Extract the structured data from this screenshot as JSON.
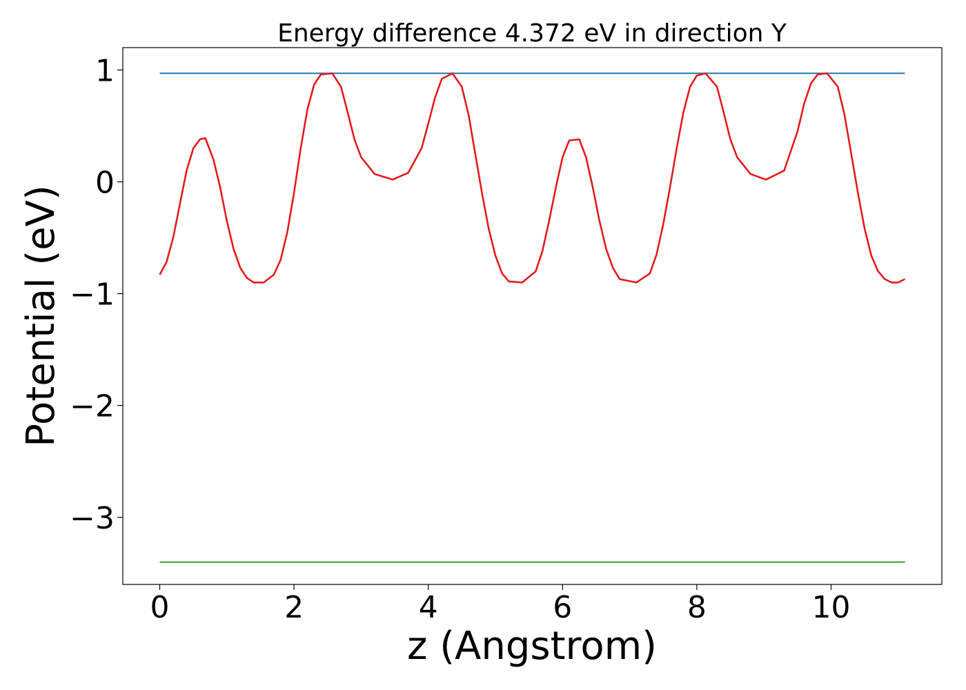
{
  "chart_data": {
    "type": "line",
    "title": "Energy difference 4.372 eV in direction Y",
    "xlabel": "z (Angstrom)",
    "ylabel": "Potential (eV)",
    "xlim": [
      -0.55,
      11.65
    ],
    "ylim": [
      -3.6,
      1.2
    ],
    "xticks": [
      0,
      2,
      4,
      6,
      8,
      10
    ],
    "xtick_labels": [
      "0",
      "2",
      "4",
      "6",
      "8",
      "10"
    ],
    "yticks": [
      1,
      0,
      -1,
      -2,
      -3
    ],
    "ytick_labels": [
      "1",
      "0",
      "−1",
      "−2",
      "−3"
    ],
    "grid": false,
    "legend": "none",
    "series": [
      {
        "color": "#1f77b4",
        "x": [
          0,
          11.1
        ],
        "y": [
          0.97,
          0.97
        ]
      },
      {
        "color": "#2ca02c",
        "x": [
          0,
          11.1
        ],
        "y": [
          -3.4,
          -3.4
        ]
      },
      {
        "color": "#e41a1c",
        "x": [
          0.0,
          0.1,
          0.2,
          0.3,
          0.4,
          0.5,
          0.6,
          0.68,
          0.8,
          0.9,
          1.0,
          1.1,
          1.2,
          1.3,
          1.4,
          1.55,
          1.7,
          1.8,
          1.9,
          2.0,
          2.1,
          2.2,
          2.3,
          2.4,
          2.57,
          2.7,
          2.8,
          2.9,
          3.0,
          3.2,
          3.47,
          3.7,
          3.9,
          4.0,
          4.1,
          4.2,
          4.36,
          4.5,
          4.6,
          4.7,
          4.8,
          4.9,
          5.0,
          5.1,
          5.2,
          5.4,
          5.6,
          5.7,
          5.8,
          5.9,
          6.0,
          6.1,
          6.25,
          6.35,
          6.45,
          6.55,
          6.65,
          6.75,
          6.85,
          7.1,
          7.3,
          7.4,
          7.5,
          7.6,
          7.7,
          7.8,
          7.9,
          8.0,
          8.13,
          8.3,
          8.4,
          8.5,
          8.6,
          8.8,
          9.03,
          9.3,
          9.5,
          9.6,
          9.7,
          9.8,
          9.94,
          10.1,
          10.2,
          10.3,
          10.4,
          10.5,
          10.6,
          10.7,
          10.8,
          10.9,
          11.0,
          11.1
        ],
        "y": [
          -0.83,
          -0.72,
          -0.5,
          -0.2,
          0.1,
          0.3,
          0.38,
          0.39,
          0.2,
          -0.05,
          -0.35,
          -0.6,
          -0.77,
          -0.86,
          -0.9,
          -0.9,
          -0.83,
          -0.7,
          -0.45,
          -0.1,
          0.3,
          0.65,
          0.87,
          0.96,
          0.97,
          0.85,
          0.62,
          0.38,
          0.22,
          0.07,
          0.02,
          0.08,
          0.3,
          0.52,
          0.75,
          0.92,
          0.97,
          0.85,
          0.6,
          0.25,
          -0.1,
          -0.42,
          -0.66,
          -0.82,
          -0.89,
          -0.9,
          -0.8,
          -0.62,
          -0.35,
          -0.05,
          0.22,
          0.37,
          0.38,
          0.22,
          -0.05,
          -0.35,
          -0.6,
          -0.77,
          -0.87,
          -0.9,
          -0.82,
          -0.65,
          -0.38,
          -0.05,
          0.3,
          0.62,
          0.85,
          0.95,
          0.97,
          0.85,
          0.62,
          0.38,
          0.22,
          0.07,
          0.02,
          0.1,
          0.45,
          0.7,
          0.88,
          0.96,
          0.97,
          0.85,
          0.6,
          0.25,
          -0.1,
          -0.42,
          -0.66,
          -0.8,
          -0.87,
          -0.9,
          -0.9,
          -0.87
        ]
      }
    ]
  }
}
